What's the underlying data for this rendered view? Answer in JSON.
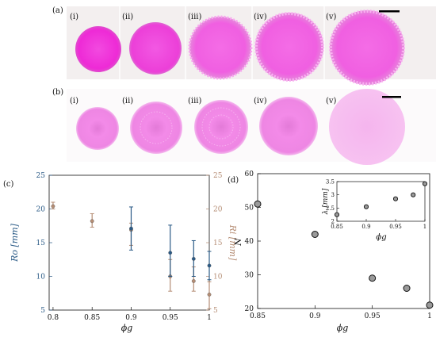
{
  "panel_a": {
    "label": "(a)",
    "sublabels": [
      "(i)",
      "(ii)",
      "(iii)",
      "(iv)",
      "(v)"
    ]
  },
  "panel_b": {
    "label": "(b)",
    "sublabels": [
      "(i)",
      "(ii)",
      "(iii)",
      "(iv)",
      "(v)"
    ]
  },
  "colors": {
    "magenta": "#ee2ad6",
    "magenta_light": "#f07de6",
    "photo_bg": "#f2eeee",
    "blue": "#2a5a86",
    "brown": "#b58d74",
    "dot_fill": "#9a9a9a"
  },
  "chart_data": [
    {
      "panel_label": "(c)",
      "type": "scatter",
      "xlabel": "ϕg",
      "x_ticks": [
        "0.8",
        "0.85",
        "0.9",
        "0.95",
        "1"
      ],
      "xlim": [
        0.795,
        1.0
      ],
      "series": [
        {
          "name": "Ro [mm]",
          "axis": "left",
          "color": "#2a5a86",
          "ylabel": "Ro [mm]",
          "ylim": [
            5,
            25
          ],
          "y_ticks": [
            "5",
            "10",
            "15",
            "20",
            "25"
          ],
          "points": [
            {
              "x": 0.9,
              "y": 17.1,
              "err": [
                13.9,
                20.3
              ]
            },
            {
              "x": 0.95,
              "y": 13.5,
              "err": [
                10.0,
                17.6
              ]
            },
            {
              "x": 0.98,
              "y": 12.6,
              "err": [
                10.0,
                15.3
              ]
            },
            {
              "x": 1.0,
              "y": 11.6,
              "err": [
                9.5,
                13.7
              ]
            }
          ]
        },
        {
          "name": "Ri [mm]",
          "axis": "right",
          "color": "#b58d74",
          "ylabel": "Ri [mm]",
          "ylim": [
            5,
            25
          ],
          "y_ticks": [
            "5",
            "10",
            "15",
            "20",
            "25"
          ],
          "points": [
            {
              "x": 0.8,
              "y": 20.4,
              "err": [
                20.0,
                21.0
              ]
            },
            {
              "x": 0.85,
              "y": 18.2,
              "err": [
                17.3,
                19.3
              ]
            },
            {
              "x": 0.9,
              "y": 16.9,
              "err": [
                14.6,
                17.9
              ]
            },
            {
              "x": 0.95,
              "y": 10.0,
              "err": [
                7.8,
                12.5
              ]
            },
            {
              "x": 0.98,
              "y": 9.3,
              "err": [
                7.8,
                11.4
              ]
            },
            {
              "x": 1.0,
              "y": 7.3,
              "err": [
                5.2,
                9.2
              ]
            }
          ]
        }
      ]
    },
    {
      "panel_label": "(d)",
      "type": "scatter",
      "xlabel": "ϕg",
      "ylabel": "N",
      "xlim": [
        0.85,
        1.0
      ],
      "ylim": [
        20,
        60
      ],
      "x_ticks": [
        "0.85",
        "0.9",
        "0.95",
        "1"
      ],
      "y_ticks": [
        "20",
        "30",
        "40",
        "50",
        "60"
      ],
      "points": [
        {
          "x": 0.85,
          "y": 51
        },
        {
          "x": 0.9,
          "y": 42
        },
        {
          "x": 0.95,
          "y": 29
        },
        {
          "x": 0.98,
          "y": 26
        },
        {
          "x": 1.0,
          "y": 21
        }
      ],
      "inset": {
        "ylabel": "λ [mm]",
        "xlabel": "ϕg",
        "xlim": [
          0.85,
          1.0
        ],
        "ylim": [
          2,
          3.5
        ],
        "x_ticks": [
          "0.85",
          "0.9",
          "0.95",
          "1"
        ],
        "y_ticks": [
          "2",
          "2.5",
          "3",
          "3.5"
        ],
        "points": [
          {
            "x": 0.85,
            "y": 2.25
          },
          {
            "x": 0.9,
            "y": 2.55
          },
          {
            "x": 0.95,
            "y": 2.85
          },
          {
            "x": 0.98,
            "y": 3.0
          },
          {
            "x": 1.0,
            "y": 3.42
          }
        ]
      }
    }
  ]
}
